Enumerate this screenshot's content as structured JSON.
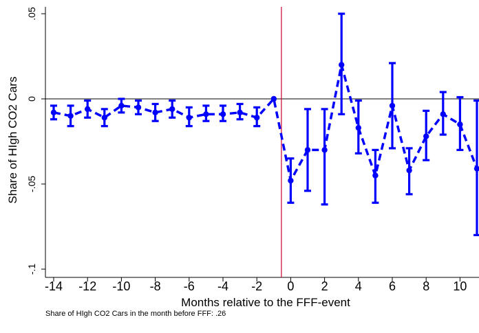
{
  "chart_data": {
    "type": "line",
    "title": "",
    "xlabel": "Months relative to the FFF-event",
    "ylabel": "Share of HIgh CO2 Cars",
    "note": "Share of HIgh CO2 Cars in the month before FFF: .26",
    "xlim": [
      -14.5,
      11.4
    ],
    "ylim": [
      -0.1,
      0.055
    ],
    "x_ticks": [
      -14,
      -12,
      -10,
      -8,
      -6,
      -4,
      -2,
      0,
      2,
      4,
      6,
      8,
      10
    ],
    "x_tick_labels": [
      "-14",
      "-12",
      "-10",
      "-8",
      "-6",
      "-4",
      "-2",
      "0",
      "2",
      "4",
      "6",
      "8",
      "10"
    ],
    "y_ticks": [
      -0.1,
      -0.05,
      0,
      0.05
    ],
    "y_tick_labels": [
      "-.1",
      "-.05",
      "0",
      ".05"
    ],
    "event_line_x": -0.55,
    "zero_line_y": 0,
    "colors": {
      "series": "#0000ff",
      "event_line": "#cc0033",
      "zero_line": "#000000"
    },
    "grid": false,
    "series": [
      {
        "x": [
          -14,
          -13,
          -12,
          -11,
          -10,
          -9,
          -8,
          -7,
          -6,
          -5,
          -4,
          -3,
          -2,
          -1,
          0,
          1,
          2,
          3,
          4,
          5,
          6,
          7,
          8,
          9,
          10,
          11
        ],
        "y": [
          -0.008,
          -0.01,
          -0.006,
          -0.011,
          -0.004,
          -0.005,
          -0.008,
          -0.006,
          -0.011,
          -0.009,
          -0.009,
          -0.008,
          -0.011,
          0.0,
          -0.048,
          -0.03,
          -0.03,
          0.02,
          -0.017,
          -0.045,
          -0.004,
          -0.042,
          -0.022,
          -0.009,
          -0.015,
          -0.041
        ],
        "ci_low": [
          -0.012,
          -0.016,
          -0.011,
          -0.016,
          -0.008,
          -0.009,
          -0.013,
          -0.011,
          -0.016,
          -0.013,
          -0.013,
          -0.012,
          -0.016,
          0.0,
          -0.061,
          -0.054,
          -0.062,
          -0.009,
          -0.032,
          -0.061,
          -0.029,
          -0.056,
          -0.036,
          -0.021,
          -0.03,
          -0.08
        ],
        "ci_high": [
          -0.004,
          -0.004,
          -0.001,
          -0.006,
          0.0,
          -0.001,
          -0.003,
          -0.001,
          -0.005,
          -0.004,
          -0.004,
          -0.003,
          -0.005,
          0.0,
          -0.035,
          -0.006,
          -0.006,
          0.05,
          -0.001,
          -0.03,
          0.021,
          -0.029,
          -0.007,
          0.004,
          0.001,
          -0.001
        ]
      }
    ]
  }
}
